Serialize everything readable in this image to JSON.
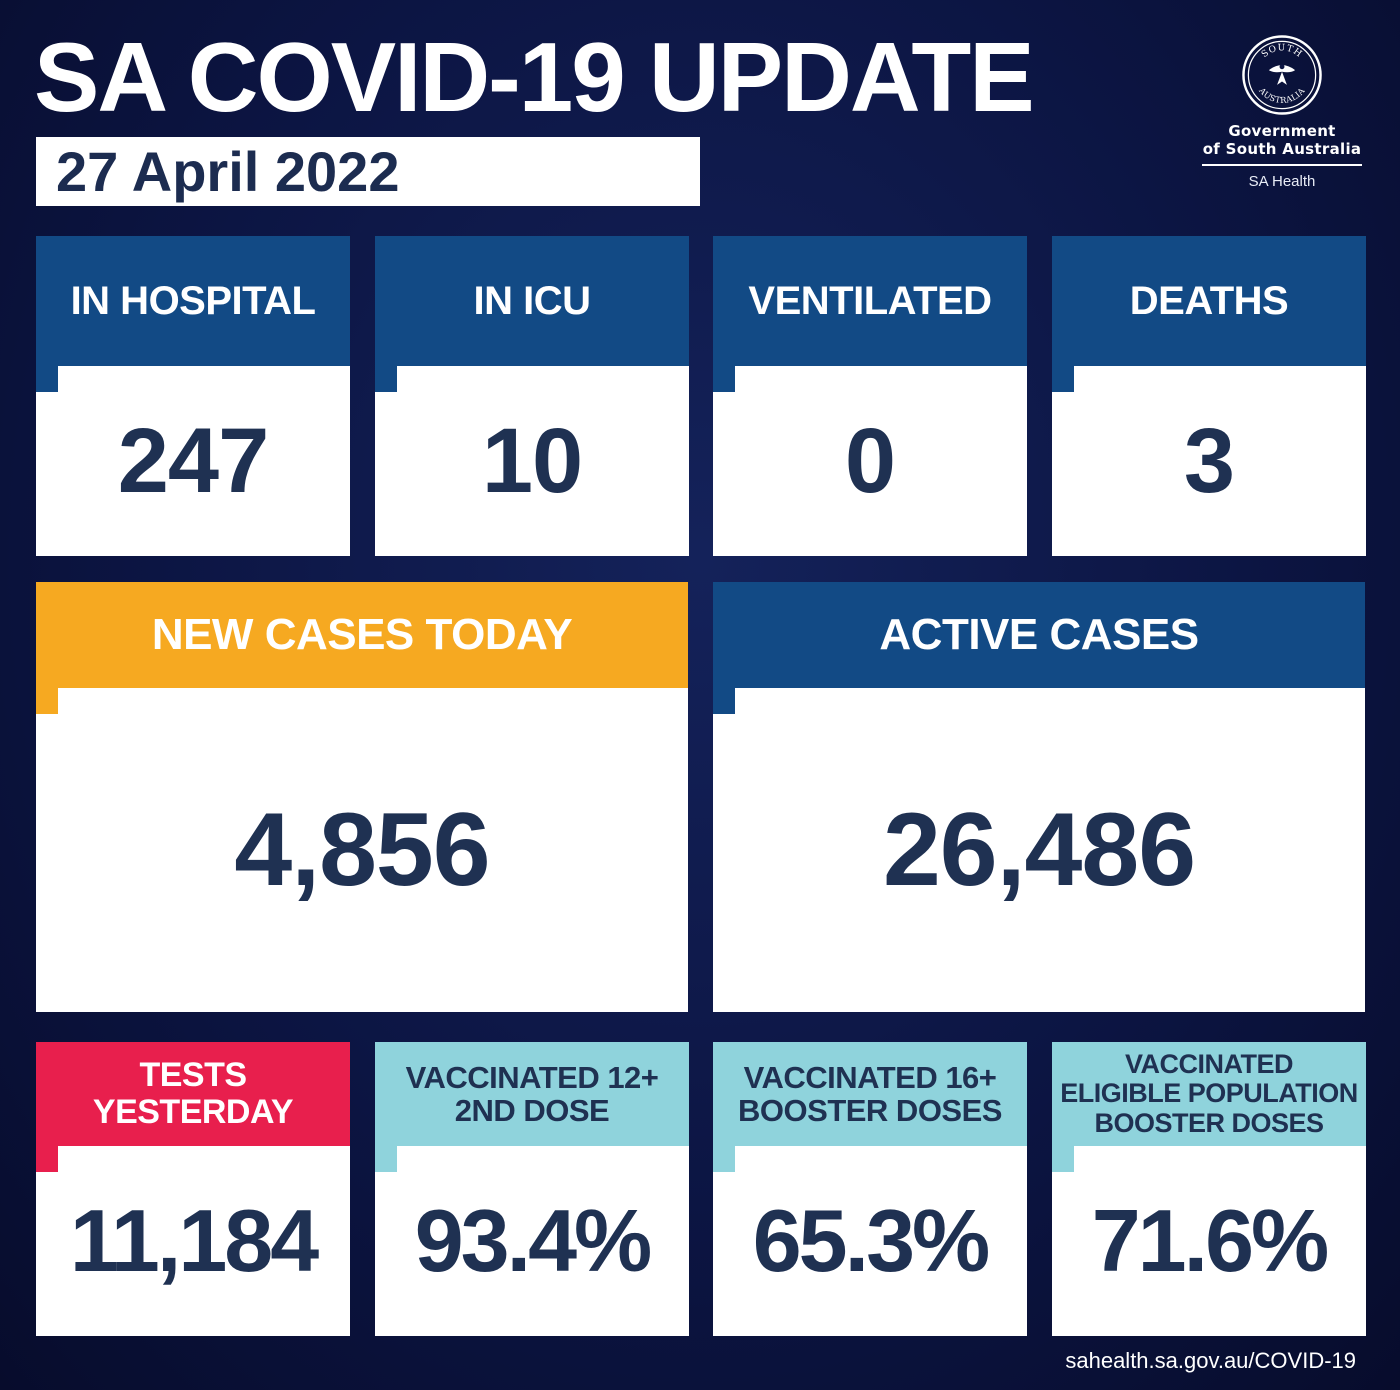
{
  "header": {
    "title": "SA COVID-19 UPDATE",
    "date": "27 April 2022"
  },
  "logo": {
    "seal_icon": "south-australia-seal-icon",
    "seal_text_top": "SOUTH",
    "seal_text_bottom": "AUSTRALIA",
    "government_line1": "Government",
    "government_line2": "of South Australia",
    "department": "SA Health"
  },
  "stats_top": [
    {
      "label": "IN HOSPITAL",
      "value": "247"
    },
    {
      "label": "IN ICU",
      "value": "10"
    },
    {
      "label": "VENTILATED",
      "value": "0"
    },
    {
      "label": "DEATHS",
      "value": "3"
    }
  ],
  "stats_middle": [
    {
      "label": "NEW CASES TODAY",
      "value": "4,856"
    },
    {
      "label": "ACTIVE CASES",
      "value": "26,486"
    }
  ],
  "stats_bottom": [
    {
      "label_lines": [
        "TESTS",
        "YESTERDAY"
      ],
      "value": "11,184"
    },
    {
      "label_lines": [
        "VACCINATED 12+",
        "2ND DOSE"
      ],
      "value": "93.4%"
    },
    {
      "label_lines": [
        "VACCINATED 16+",
        "BOOSTER DOSES"
      ],
      "value": "65.3%"
    },
    {
      "label_lines": [
        "VACCINATED",
        "ELIGIBLE POPULATION",
        "BOOSTER DOSES"
      ],
      "value": "71.6%"
    }
  ],
  "footer": {
    "url": "sahealth.sa.gov.au/COVID-19"
  },
  "colors": {
    "background": "#0c1543",
    "header_blue": "#124a85",
    "header_orange": "#f6a921",
    "header_red": "#e81f4d",
    "header_teal": "#8fd3dc",
    "value_text": "#1f3152"
  }
}
